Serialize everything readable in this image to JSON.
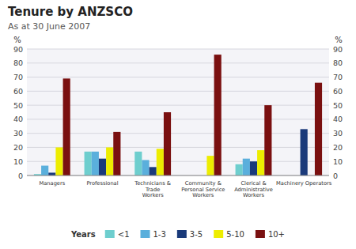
{
  "chart_data": {
    "type": "bar",
    "title": "Tenure by ANZSCO",
    "subtitle": "As at 30 June 2007",
    "categories": [
      "Managers",
      "Professional",
      "Technicians &\nTrade\nWorkers",
      "Community &\nPersonal Service\nWorkers",
      "Clerical &\nAdministrative\nWorkers",
      "Machinery Operators"
    ],
    "series": [
      {
        "name": "<1",
        "color": "#6ecece",
        "values": [
          1,
          17,
          17,
          0,
          8,
          0
        ]
      },
      {
        "name": "1-3",
        "color": "#5aafdc",
        "values": [
          7,
          17,
          11,
          0,
          12,
          0
        ]
      },
      {
        "name": "3-5",
        "color": "#1a3a7a",
        "values": [
          2,
          12,
          6,
          0,
          10,
          33
        ]
      },
      {
        "name": "5-10",
        "color": "#eded00",
        "values": [
          20,
          20,
          19,
          14,
          18,
          0
        ]
      },
      {
        "name": "10+",
        "color": "#7a1010",
        "values": [
          69,
          31,
          45,
          86,
          50,
          66
        ]
      }
    ],
    "ylabel": "%",
    "y2label": "%",
    "ylim": [
      0,
      90
    ],
    "yticks": [
      0,
      10,
      20,
      30,
      40,
      50,
      60,
      70,
      80,
      90
    ],
    "y2lim": [
      0,
      90
    ],
    "y2ticks": [
      0,
      10,
      20,
      30,
      40,
      50,
      60,
      70,
      80,
      90
    ],
    "legend_title": "Years",
    "legend": "bottom",
    "grid": true
  }
}
